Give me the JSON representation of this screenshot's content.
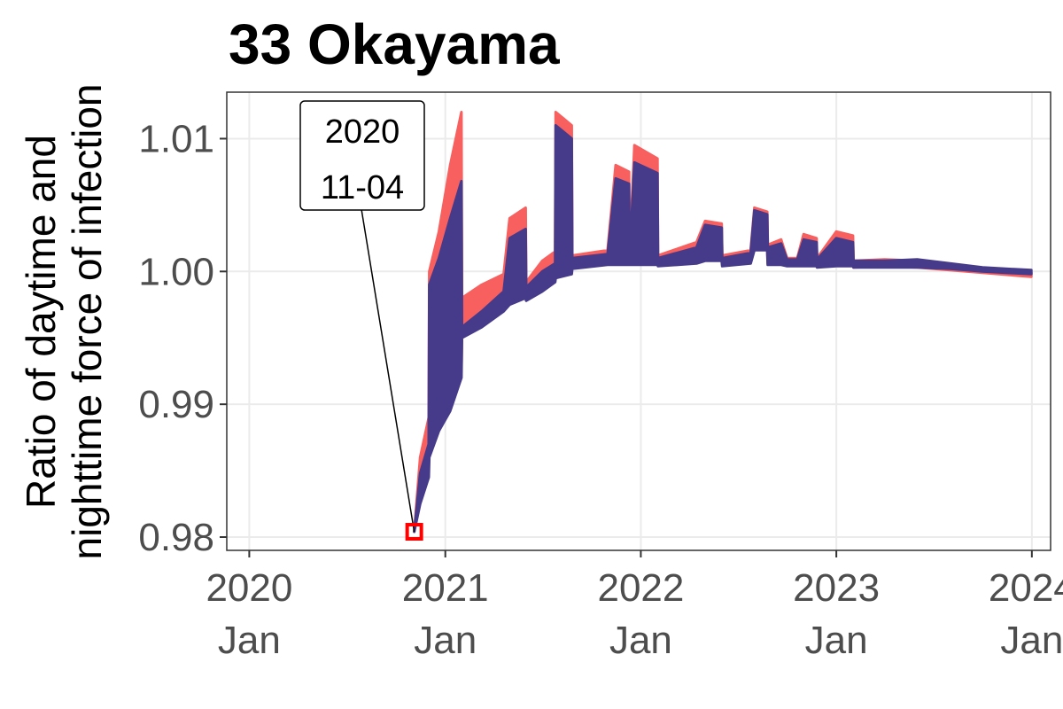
{
  "chart_data": {
    "type": "area",
    "title": "33 Okayama",
    "ylabel": [
      "Ratio of daytime and",
      "nighttime force of infection"
    ],
    "xlabel": "",
    "xlim": [
      "2019-11-20",
      "2024-02-05"
    ],
    "ylim": [
      0.979,
      1.0135
    ],
    "y_ticks": [
      0.98,
      0.99,
      1.0,
      1.01
    ],
    "y_tick_labels": [
      "0.98",
      "0.99",
      "1.00",
      "1.01"
    ],
    "x_ticks": [
      {
        "date": "2020-01-01",
        "year": "2020",
        "month": "Jan"
      },
      {
        "date": "2021-01-01",
        "year": "2021",
        "month": "Jan"
      },
      {
        "date": "2022-01-01",
        "year": "2022",
        "month": "Jan"
      },
      {
        "date": "2023-01-01",
        "year": "2023",
        "month": "Jan"
      },
      {
        "date": "2024-01-01",
        "year": "2024",
        "month": "Jan"
      }
    ],
    "grid": true,
    "annotation": {
      "line1": "2020",
      "line2": "11-04",
      "date": "2020-11-04",
      "value": 0.9804
    },
    "series": [
      {
        "color": "#F8605F",
        "points": [
          [
            "2020-11-04",
            0.9804,
            0.9804
          ],
          [
            "2020-11-15",
            0.983,
            0.986
          ],
          [
            "2020-12-01",
            0.9855,
            0.989
          ],
          [
            "2020-12-02",
            0.987,
            1.0
          ],
          [
            "2020-12-20",
            0.9885,
            1.003
          ],
          [
            "2021-01-10",
            0.99,
            1.008
          ],
          [
            "2021-01-31",
            0.9925,
            1.012
          ],
          [
            "2021-02-01",
            0.9955,
            0.998
          ],
          [
            "2021-03-10",
            0.9965,
            0.999
          ],
          [
            "2021-04-20",
            0.9975,
            0.9998
          ],
          [
            "2021-05-01",
            0.998,
            1.004
          ],
          [
            "2021-05-31",
            0.9985,
            1.0048
          ],
          [
            "2021-06-01",
            0.9982,
            0.9992
          ],
          [
            "2021-07-01",
            0.9988,
            1.0008
          ],
          [
            "2021-07-25",
            0.9995,
            1.0015
          ],
          [
            "2021-07-26",
            0.9998,
            1.012
          ],
          [
            "2021-08-25",
            1.0,
            1.011
          ],
          [
            "2021-08-26",
            1.0003,
            1.0012
          ],
          [
            "2021-10-31",
            1.0006,
            1.0016
          ],
          [
            "2021-11-15",
            1.0006,
            1.008
          ],
          [
            "2021-12-10",
            1.0006,
            1.0075
          ],
          [
            "2021-12-11",
            1.0006,
            1.0012
          ],
          [
            "2021-12-20",
            1.0006,
            1.0095
          ],
          [
            "2022-02-01",
            1.0006,
            1.0085
          ],
          [
            "2022-02-02",
            1.0005,
            1.0012
          ],
          [
            "2022-04-15",
            1.0008,
            1.0022
          ],
          [
            "2022-05-01",
            1.001,
            1.0038
          ],
          [
            "2022-06-01",
            1.001,
            1.0036
          ],
          [
            "2022-06-02",
            1.0005,
            1.0012
          ],
          [
            "2022-07-25",
            1.0007,
            1.0016
          ],
          [
            "2022-08-01",
            1.0018,
            1.0048
          ],
          [
            "2022-08-25",
            1.0018,
            1.0045
          ],
          [
            "2022-08-26",
            1.0006,
            1.002
          ],
          [
            "2022-09-20",
            1.0006,
            1.0024
          ],
          [
            "2022-10-01",
            1.0005,
            1.001
          ],
          [
            "2022-10-20",
            1.0005,
            1.001
          ],
          [
            "2022-11-01",
            1.0005,
            1.0028
          ],
          [
            "2022-11-25",
            1.0005,
            1.0025
          ],
          [
            "2022-11-26",
            1.0004,
            1.001
          ],
          [
            "2023-01-01",
            1.0005,
            1.003
          ],
          [
            "2023-02-01",
            1.0005,
            1.0027
          ],
          [
            "2023-02-02",
            1.0003,
            1.0008
          ],
          [
            "2023-04-01",
            1.0004,
            1.0009
          ],
          [
            "2023-06-01",
            1.0003,
            1.0008
          ],
          [
            "2023-08-01",
            1.0001,
            1.0005
          ],
          [
            "2023-10-01",
            0.9999,
            1.0002
          ],
          [
            "2023-12-31",
            0.9996,
            0.9999
          ]
        ]
      },
      {
        "color": "#463A8A",
        "points": [
          [
            "2020-11-04",
            0.9804,
            0.9804
          ],
          [
            "2020-11-15",
            0.9825,
            0.9848
          ],
          [
            "2020-12-01",
            0.9845,
            0.987
          ],
          [
            "2020-12-02",
            0.986,
            0.999
          ],
          [
            "2020-12-20",
            0.988,
            1.001
          ],
          [
            "2021-01-10",
            0.9895,
            1.004
          ],
          [
            "2021-01-31",
            0.992,
            1.0068
          ],
          [
            "2021-02-01",
            0.995,
            0.9958
          ],
          [
            "2021-03-10",
            0.9958,
            0.997
          ],
          [
            "2021-04-20",
            0.997,
            0.9985
          ],
          [
            "2021-05-01",
            0.9975,
            1.0025
          ],
          [
            "2021-05-31",
            0.998,
            1.0032
          ],
          [
            "2021-06-01",
            0.9978,
            0.9988
          ],
          [
            "2021-07-01",
            0.9985,
            1.0
          ],
          [
            "2021-07-25",
            0.9992,
            1.0006
          ],
          [
            "2021-07-26",
            0.9995,
            1.011
          ],
          [
            "2021-08-25",
            0.9998,
            1.01
          ],
          [
            "2021-08-26",
            1.0002,
            1.001
          ],
          [
            "2021-10-31",
            1.0005,
            1.0013
          ],
          [
            "2021-11-15",
            1.0005,
            1.007
          ],
          [
            "2021-12-10",
            1.0005,
            1.0066
          ],
          [
            "2021-12-11",
            1.0005,
            1.001
          ],
          [
            "2021-12-20",
            1.0005,
            1.0082
          ],
          [
            "2022-02-01",
            1.0005,
            1.0074
          ],
          [
            "2022-02-02",
            1.0004,
            1.001
          ],
          [
            "2022-04-15",
            1.0006,
            1.0018
          ],
          [
            "2022-05-01",
            1.0008,
            1.0035
          ],
          [
            "2022-06-01",
            1.0008,
            1.0033
          ],
          [
            "2022-06-02",
            1.0004,
            1.001
          ],
          [
            "2022-07-25",
            1.0006,
            1.0014
          ],
          [
            "2022-08-01",
            1.0016,
            1.0046
          ],
          [
            "2022-08-25",
            1.0016,
            1.0043
          ],
          [
            "2022-08-26",
            1.0005,
            1.0018
          ],
          [
            "2022-09-20",
            1.0005,
            1.0021
          ],
          [
            "2022-10-01",
            1.0004,
            1.0009
          ],
          [
            "2022-10-20",
            1.0004,
            1.0009
          ],
          [
            "2022-11-01",
            1.0004,
            1.0024
          ],
          [
            "2022-11-25",
            1.0004,
            1.0022
          ],
          [
            "2022-11-26",
            1.0003,
            1.0009
          ],
          [
            "2023-01-01",
            1.0004,
            1.0025
          ],
          [
            "2023-02-01",
            1.0004,
            1.0022
          ],
          [
            "2023-02-02",
            1.0003,
            1.0008
          ],
          [
            "2023-04-01",
            1.0003,
            1.0008
          ],
          [
            "2023-06-01",
            1.0003,
            1.0009
          ],
          [
            "2023-08-01",
            1.0002,
            1.0006
          ],
          [
            "2023-10-01",
            1.0,
            1.0003
          ],
          [
            "2023-12-31",
            0.9998,
            1.0001
          ]
        ]
      }
    ]
  }
}
